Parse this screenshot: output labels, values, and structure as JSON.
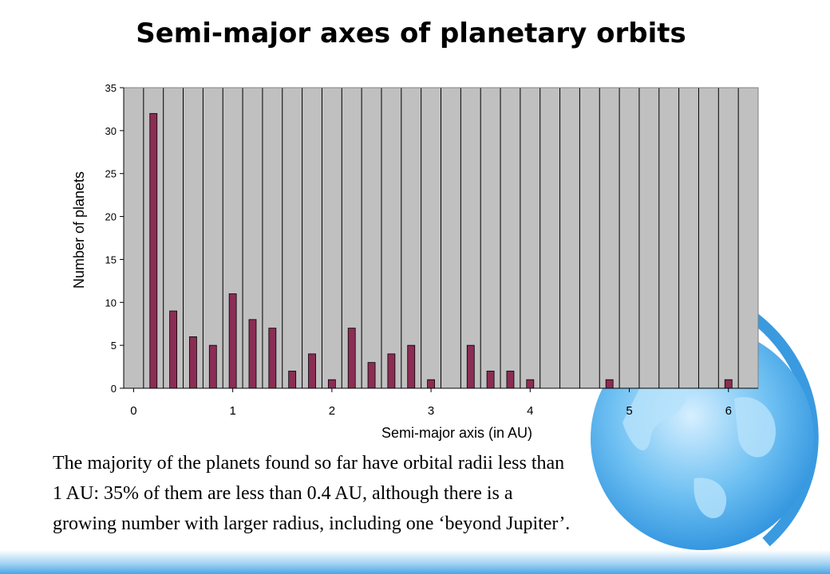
{
  "slide": {
    "title": "Semi-major axes of planetary orbits",
    "caption_lines": [
      "The majority of the planets found so far have orbital radii less than",
      "1 AU: 35% of them are less than 0.4 AU, although there is a",
      "growing number with larger radius, including one ‘beyond Jupiter’."
    ]
  },
  "chart_data": {
    "type": "bar",
    "title": "Semi-major axes of planetary orbits",
    "xlabel": "Semi-major axis (in AU)",
    "ylabel": "Number of planets",
    "ylim": [
      0,
      35
    ],
    "xlim": [
      -0.1,
      6.3
    ],
    "yticks": [
      0,
      5,
      10,
      15,
      20,
      25,
      30,
      35
    ],
    "xticks": [
      0,
      1,
      2,
      3,
      4,
      5,
      6
    ],
    "grid": "vertical",
    "legend": "none",
    "bar_color": "#8b2d54",
    "plot_bg": "#c0c0c0",
    "x": [
      0.2,
      0.4,
      0.6,
      0.8,
      1.0,
      1.2,
      1.4,
      1.6,
      1.8,
      2.0,
      2.2,
      2.4,
      2.6,
      2.8,
      3.0,
      3.2,
      3.4,
      3.6,
      3.8,
      4.0,
      4.2,
      4.4,
      4.6,
      4.8,
      5.0,
      5.2,
      5.4,
      5.6,
      5.8,
      6.0,
      6.2
    ],
    "values": [
      32,
      9,
      6,
      5,
      11,
      8,
      7,
      2,
      4,
      1,
      7,
      3,
      4,
      5,
      1,
      0,
      5,
      2,
      2,
      1,
      0,
      0,
      0,
      1,
      0,
      0,
      0,
      0,
      0,
      1,
      0
    ]
  }
}
